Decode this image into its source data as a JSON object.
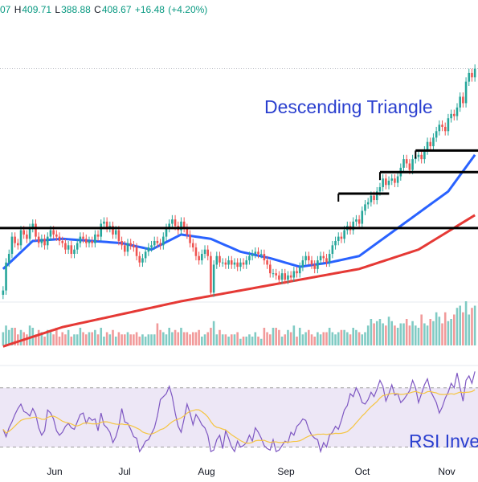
{
  "header": {
    "open_fragment": "07",
    "high_label": "H",
    "high": "409.71",
    "low_label": "L",
    "low": "388.88",
    "close_label": "C",
    "close": "408.67",
    "change": "+16.48",
    "change_pct": "(+4.20%)"
  },
  "annotations": {
    "pattern": "Descending Triangle",
    "rsi": "RSI Inve"
  },
  "chart_data": {
    "type": "candlestick",
    "x_tick_labels": [
      "Jun",
      "Jul",
      "Aug",
      "Sep",
      "Oct",
      "Nov"
    ],
    "last_bar": {
      "open": 392.19,
      "high": 409.71,
      "low": 388.88,
      "close": 408.67,
      "change": 16.48,
      "change_pct": 4.2
    },
    "price_range": [
      300,
      425
    ],
    "price_closes": [
      305,
      318,
      322,
      330,
      327,
      326,
      333,
      331,
      329,
      334,
      336,
      330,
      327,
      329,
      326,
      330,
      333,
      331,
      330,
      328,
      327,
      324,
      326,
      322,
      324,
      327,
      330,
      329,
      327,
      328,
      327,
      331,
      330,
      336,
      337,
      334,
      335,
      331,
      333,
      328,
      326,
      323,
      327,
      326,
      325,
      321,
      318,
      320,
      323,
      325,
      326,
      328,
      327,
      326,
      330,
      334,
      336,
      338,
      335,
      333,
      337,
      334,
      331,
      327,
      325,
      321,
      319,
      322,
      324,
      321,
      304,
      317,
      321,
      318,
      318,
      317,
      319,
      317,
      318,
      316,
      318,
      317,
      319,
      321,
      322,
      323,
      322,
      322,
      319,
      317,
      313,
      313,
      312,
      310,
      313,
      310,
      312,
      311,
      314,
      313,
      316,
      319,
      321,
      319,
      317,
      315,
      319,
      321,
      320,
      318,
      322,
      326,
      328,
      330,
      329,
      333,
      335,
      333,
      337,
      338,
      336,
      342,
      345,
      346,
      349,
      347,
      351,
      353,
      357,
      354,
      356,
      357,
      355,
      358,
      362,
      366,
      364,
      361,
      366,
      367,
      368,
      366,
      370,
      374,
      372,
      376,
      379,
      382,
      381,
      379,
      385,
      387,
      386,
      390,
      395,
      392,
      402,
      406,
      404,
      408
    ],
    "ma_fast": [
      {
        "t": 0,
        "v": 315
      },
      {
        "t": 10,
        "v": 328
      },
      {
        "t": 20,
        "v": 329
      },
      {
        "t": 30,
        "v": 328
      },
      {
        "t": 40,
        "v": 327
      },
      {
        "t": 50,
        "v": 324
      },
      {
        "t": 60,
        "v": 331
      },
      {
        "t": 70,
        "v": 329
      },
      {
        "t": 80,
        "v": 323
      },
      {
        "t": 90,
        "v": 320
      },
      {
        "t": 100,
        "v": 316
      },
      {
        "t": 110,
        "v": 318
      },
      {
        "t": 120,
        "v": 321
      },
      {
        "t": 130,
        "v": 331
      },
      {
        "t": 140,
        "v": 341
      },
      {
        "t": 150,
        "v": 351
      },
      {
        "t": 159,
        "v": 368
      }
    ],
    "ma_slow": [
      {
        "t": 0,
        "v": 279
      },
      {
        "t": 20,
        "v": 288
      },
      {
        "t": 40,
        "v": 294
      },
      {
        "t": 60,
        "v": 300
      },
      {
        "t": 80,
        "v": 305
      },
      {
        "t": 100,
        "v": 310
      },
      {
        "t": 120,
        "v": 315
      },
      {
        "t": 140,
        "v": 324
      },
      {
        "t": 159,
        "v": 340
      }
    ],
    "support_level": 334,
    "flags": [
      {
        "t_start": 113,
        "t_end": 129,
        "level": 350
      },
      {
        "t_start": 127,
        "t_end": 159,
        "level": 360
      },
      {
        "t_start": 139,
        "t_end": 159,
        "level": 370
      }
    ],
    "volume": [
      6,
      9,
      7,
      8,
      8,
      5,
      7,
      6,
      5,
      9,
      8,
      5,
      7,
      6,
      4,
      7,
      6,
      5,
      8,
      4,
      6,
      5,
      7,
      4,
      5,
      5,
      8,
      6,
      5,
      6,
      6,
      7,
      5,
      8,
      4,
      6,
      5,
      7,
      4,
      6,
      5,
      5,
      6,
      5,
      5,
      6,
      4,
      5,
      4,
      5,
      5,
      5,
      10,
      7,
      6,
      5,
      8,
      6,
      7,
      6,
      8,
      6,
      6,
      5,
      6,
      6,
      7,
      4,
      5,
      6,
      8,
      11,
      5,
      7,
      5,
      5,
      4,
      5,
      5,
      6,
      3,
      4,
      4,
      5,
      4,
      6,
      4,
      3,
      8,
      6,
      5,
      8,
      8,
      7,
      4,
      5,
      7,
      6,
      9,
      4,
      8,
      5,
      6,
      7,
      5,
      4,
      6,
      5,
      6,
      6,
      8,
      6,
      5,
      6,
      7,
      7,
      6,
      5,
      8,
      7,
      6,
      5,
      6,
      9,
      12,
      10,
      11,
      12,
      10,
      9,
      13,
      11,
      9,
      8,
      10,
      10,
      12,
      9,
      11,
      9,
      8,
      14,
      10,
      9,
      12,
      11,
      15,
      13,
      10,
      15,
      11,
      12,
      14,
      17,
      18,
      15,
      20,
      14,
      17,
      18
    ],
    "rsi_range": [
      20,
      85
    ],
    "rsi": [
      42,
      37,
      43,
      47,
      52,
      56,
      59,
      54,
      53,
      51,
      56,
      52,
      43,
      38,
      41,
      55,
      53,
      49,
      41,
      38,
      40,
      44,
      46,
      43,
      42,
      47,
      52,
      53,
      46,
      50,
      48,
      49,
      41,
      53,
      45,
      43,
      40,
      33,
      37,
      44,
      56,
      47,
      46,
      42,
      37,
      36,
      27,
      30,
      34,
      35,
      39,
      43,
      51,
      62,
      64,
      66,
      71,
      64,
      53,
      44,
      40,
      49,
      59,
      53,
      45,
      52,
      49,
      45,
      43,
      38,
      27,
      28,
      35,
      38,
      29,
      41,
      36,
      30,
      27,
      34,
      30,
      31,
      33,
      38,
      34,
      43,
      40,
      36,
      31,
      29,
      28,
      35,
      27,
      28,
      31,
      34,
      33,
      40,
      38,
      44,
      46,
      49,
      48,
      42,
      38,
      36,
      35,
      27,
      33,
      30,
      38,
      40,
      44,
      42,
      48,
      55,
      58,
      66,
      64,
      70,
      66,
      60,
      59,
      62,
      67,
      64,
      69,
      75,
      71,
      61,
      66,
      72,
      65,
      66,
      60,
      62,
      65,
      68,
      75,
      70,
      60,
      66,
      72,
      76,
      68,
      64,
      60,
      53,
      57,
      63,
      67,
      73,
      70,
      80,
      70,
      61,
      75,
      78,
      73,
      81
    ]
  },
  "colors": {
    "up": "#26a69a",
    "down": "#ef5350",
    "vol_up": "#80cbc4",
    "vol_down": "#f19a9a",
    "ma_fast": "#2962ff",
    "ma_slow": "#e53935",
    "rsi_line": "#7e57c2",
    "rsi_ma": "#f5c542",
    "rsi_band": "#ede7f6",
    "annotation": "#2a3fcf",
    "trendline": "#000000"
  }
}
